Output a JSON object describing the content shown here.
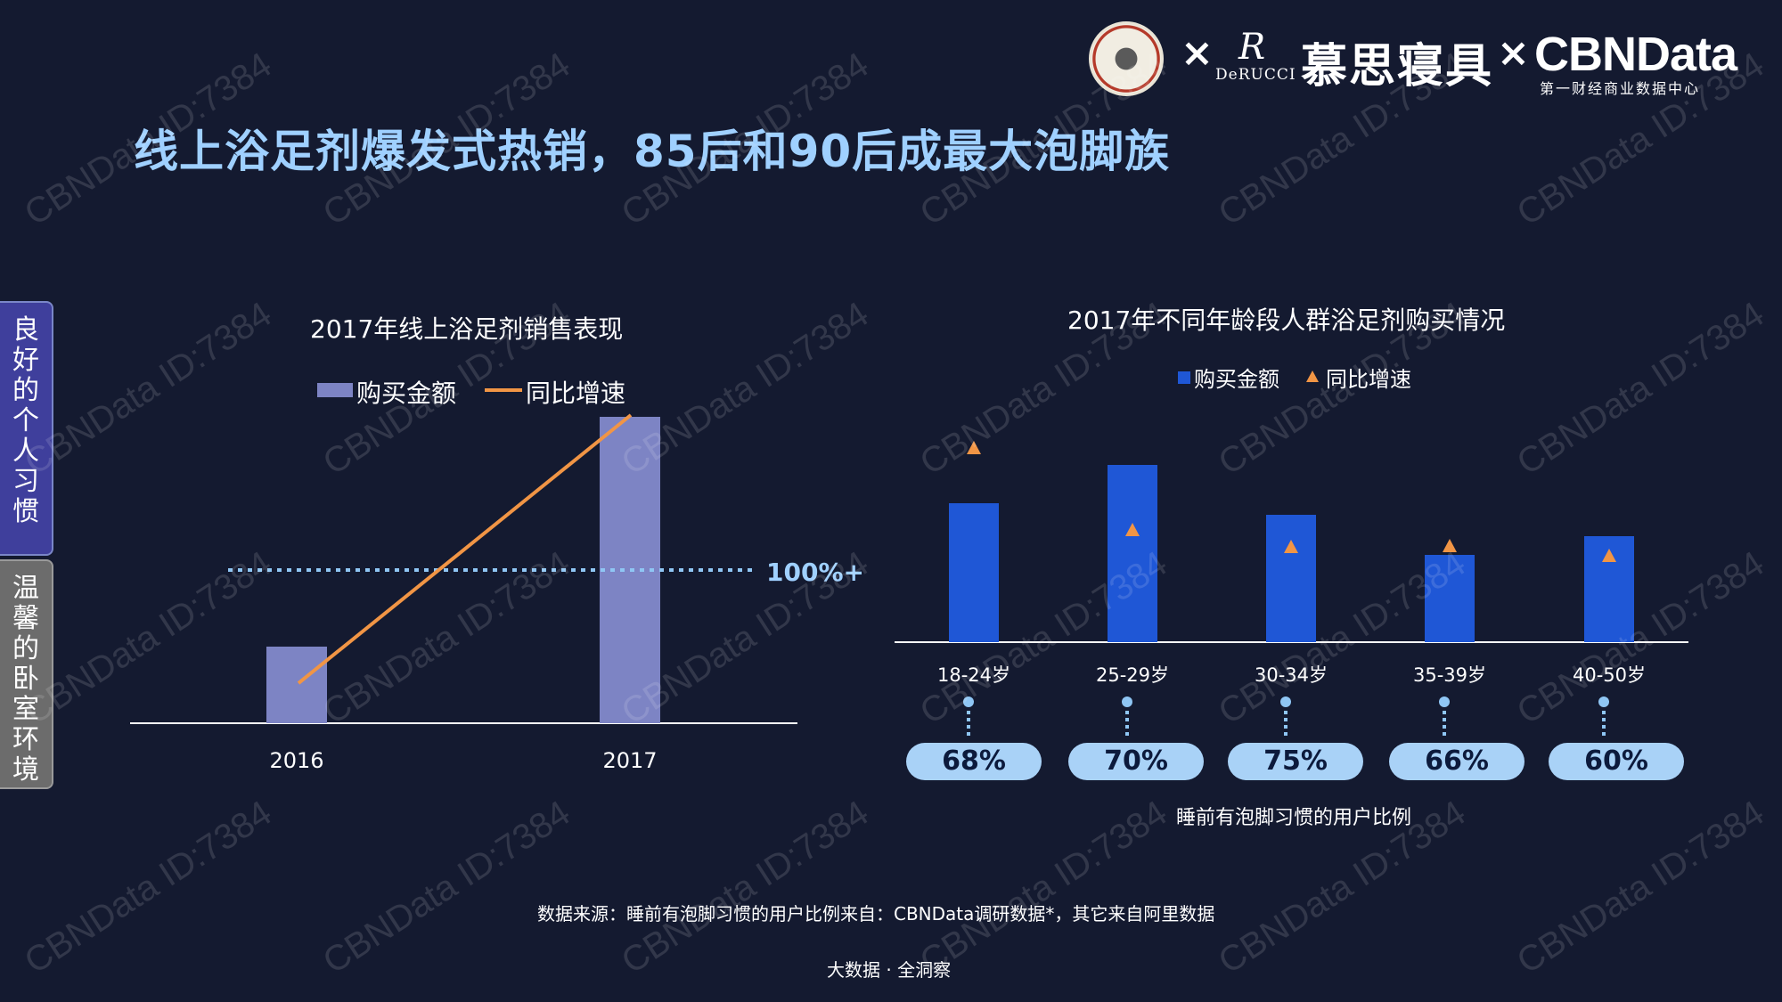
{
  "header": {
    "title": "线上浴足剂爆发式热销，85后和90后成最大泡脚族",
    "logos": {
      "times_symbol": "×",
      "derucci_mark": "R",
      "derucci_text": "DeRUCCI",
      "brand_cn": "慕思寝具",
      "cbn_logo": "CBNData",
      "cbn_sub": "第一财经商业数据中心"
    }
  },
  "side_tabs": [
    {
      "chars": [
        "良",
        "好",
        "的",
        "个",
        "人",
        "习",
        "惯"
      ]
    },
    {
      "chars": [
        "温",
        "馨",
        "的",
        "卧",
        "室",
        "环",
        "境"
      ]
    }
  ],
  "chart_data": [
    {
      "type": "bar",
      "title": "2017年线上浴足剂销售表现",
      "categories": [
        "2016",
        "2017"
      ],
      "series": [
        {
          "name": "购买金额",
          "type": "bar",
          "values": [
            1,
            4
          ]
        },
        {
          "name": "同比增速",
          "type": "line",
          "values": [
            0.13,
            1.0
          ]
        }
      ],
      "reference_line": {
        "label": "100%+",
        "style": "dotted"
      },
      "legend": "top-center",
      "colors": {
        "bar": "#7d84c4",
        "line": "#f19545",
        "reference": "#8fc6f4"
      }
    },
    {
      "type": "bar",
      "title": "2017年不同年龄段人群浴足剂购买情况",
      "categories": [
        "18-24岁",
        "25-29岁",
        "30-34岁",
        "35-39岁",
        "40-50岁"
      ],
      "series": [
        {
          "name": "购买金额",
          "type": "bar",
          "values": [
            156,
            199,
            143,
            98,
            119
          ]
        },
        {
          "name": "同比增速",
          "type": "marker",
          "values": [
            218,
            126,
            107,
            108,
            97
          ]
        }
      ],
      "legend": "top-center",
      "colors": {
        "bar": "#1f57d6",
        "marker": "#f19545"
      }
    }
  ],
  "habit": {
    "values": [
      "68%",
      "70%",
      "75%",
      "66%",
      "60%"
    ],
    "caption": "睡前有泡脚习惯的用户比例"
  },
  "footer": {
    "source": "数据来源：睡前有泡脚习惯的用户比例来自：CBNData调研数据*，其它来自阿里数据",
    "tagline": "大数据 · 全洞察"
  },
  "watermark": "CBNData ID:7384"
}
